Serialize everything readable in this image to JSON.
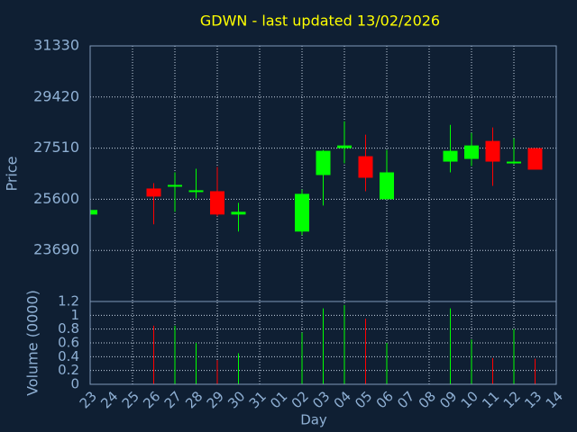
{
  "chart_data": {
    "type": "candlestick",
    "title": "GDWN - last updated 13/02/2026",
    "x_label": "Day",
    "y_label": "Price",
    "categories": [
      "23",
      "24",
      "25",
      "26",
      "27",
      "28",
      "29",
      "30",
      "31",
      "01",
      "02",
      "03",
      "04",
      "05",
      "06",
      "07",
      "08",
      "09",
      "10",
      "11",
      "12",
      "13",
      "14"
    ],
    "open": [
      25030,
      null,
      null,
      26002,
      26069,
      25868,
      25901,
      25030,
      null,
      null,
      24393,
      26505,
      27510,
      27208,
      25600,
      null,
      null,
      27007,
      27108,
      27778,
      26940,
      27510,
      null
    ],
    "high": [
      25200,
      null,
      null,
      26203,
      26605,
      26739,
      26806,
      25466,
      null,
      null,
      25968,
      27443,
      28515,
      28013,
      27443,
      null,
      null,
      28381,
      28080,
      28281,
      27878,
      27510,
      null
    ],
    "low": [
      25030,
      null,
      null,
      24662,
      25131,
      25633,
      24963,
      24393,
      null,
      null,
      24259,
      25365,
      26940,
      25901,
      25600,
      null,
      null,
      26605,
      26840,
      26102,
      26907,
      26706,
      null
    ],
    "close": [
      25200,
      null,
      null,
      25700,
      26136,
      25935,
      25030,
      25131,
      null,
      null,
      25801,
      27409,
      27610,
      26404,
      26605,
      null,
      null,
      27409,
      27610,
      27007,
      27007,
      26706,
      null
    ],
    "up_color": "#00ff00",
    "down_color": "#ff0000",
    "ylim": [
      21780,
      31330
    ],
    "yticks": [
      23690,
      25600,
      27510,
      29420,
      31330
    ],
    "grid": true,
    "volume": {
      "label": "Volume (0000)",
      "values": [
        null,
        null,
        null,
        0.85,
        0.85,
        0.6,
        0.35,
        0.45,
        null,
        null,
        0.75,
        1.1,
        1.15,
        0.95,
        0.6,
        null,
        null,
        1.1,
        0.65,
        0.38,
        0.8,
        0.37,
        null
      ],
      "ylim": [
        0,
        1.2
      ],
      "yticks": [
        0,
        0.2,
        0.4,
        0.6,
        0.8,
        1,
        1.2
      ]
    }
  }
}
